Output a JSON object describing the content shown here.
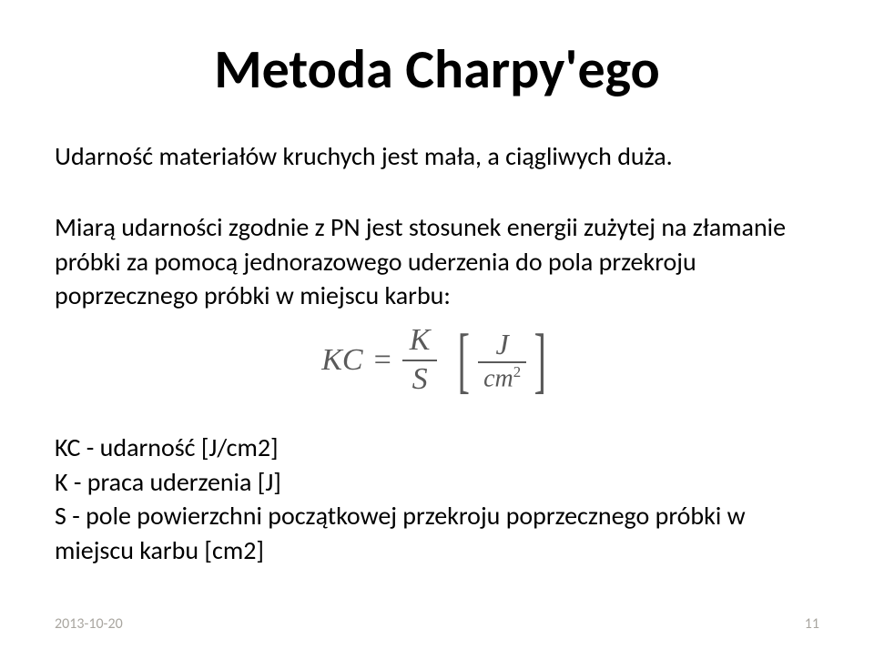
{
  "title": "Metoda Charpy'ego",
  "para1": "Udarność materiałów kruchych jest mała, a ciągliwych duża.",
  "para2": "Miarą udarności zgodnie z PN jest stosunek energii zużytej na złamanie próbki za pomocą jednorazowego uderzenia do pola przekroju poprzecznego próbki w miejscu karbu:",
  "formula": {
    "lhs": "KC",
    "eq": "=",
    "frac_num": "K",
    "frac_den": "S",
    "unit_num": "J",
    "unit_den_base": "cm",
    "unit_den_sup": "2",
    "text_color": "#5a5a5a"
  },
  "legend": {
    "line1": "KC - udarność [J/cm2]",
    "line2": "K - praca uderzenia [J]",
    "line3": "S - pole powierzchni początkowej przekroju poprzecznego próbki w miejscu karbu [cm2]"
  },
  "footer": {
    "date": "2013-10-20",
    "page": "11",
    "color": "#a9a6a0",
    "fontsize": 16
  },
  "colors": {
    "background": "#ffffff",
    "title_text": "#000000",
    "body_text": "#000000"
  },
  "typography": {
    "title_fontsize": 60,
    "title_weight": 700,
    "body_fontsize": 28,
    "formula_fontsize": 34,
    "formula_font": "serif-italic"
  }
}
